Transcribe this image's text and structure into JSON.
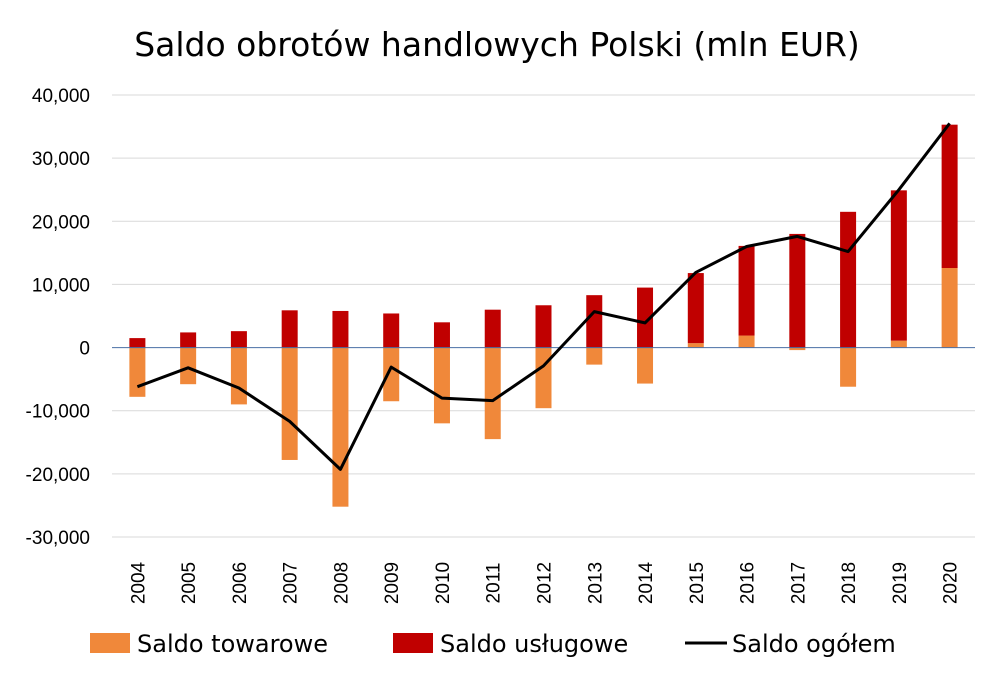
{
  "chart_data": {
    "type": "bar",
    "title": "Saldo obrotów handlowych Polski (mln EUR)",
    "xlabel": "",
    "ylabel": "",
    "ylim": [
      -30000,
      40000
    ],
    "yticks": [
      40000,
      30000,
      20000,
      10000,
      0,
      -10000,
      -20000,
      -30000
    ],
    "ytick_labels": [
      "40,000",
      "30,000",
      "20,000",
      "10,000",
      "0",
      "-10,000",
      "-20,000",
      "-30,000"
    ],
    "categories": [
      "2004",
      "2005",
      "2006",
      "2007",
      "2008",
      "2009",
      "2010",
      "2011",
      "2012",
      "2013",
      "2014",
      "2015",
      "2016",
      "2017",
      "2018",
      "2019",
      "2020"
    ],
    "stacked": true,
    "grid": true,
    "legend_position": "bottom",
    "series": [
      {
        "name": "Saldo towarowe",
        "kind": "bar",
        "color": "#F0883A",
        "values": [
          -7800,
          -5800,
          -9000,
          -17800,
          -25200,
          -8500,
          -12000,
          -14500,
          -9600,
          -2700,
          -5700,
          700,
          1900,
          -400,
          -6200,
          1100,
          12600
        ]
      },
      {
        "name": "Saldo usługowe",
        "kind": "bar",
        "color": "#C00000",
        "values": [
          1500,
          2400,
          2600,
          5900,
          5800,
          5400,
          4000,
          6000,
          6700,
          8300,
          9500,
          11100,
          14200,
          18000,
          21500,
          23800,
          22700
        ]
      },
      {
        "name": "Saldo ogółem",
        "kind": "line",
        "color": "#000000",
        "values": [
          -6200,
          -3200,
          -6400,
          -11700,
          -19300,
          -3100,
          -8000,
          -8400,
          -2900,
          5700,
          3900,
          11900,
          16000,
          17600,
          15200,
          25000,
          35500
        ]
      }
    ]
  }
}
